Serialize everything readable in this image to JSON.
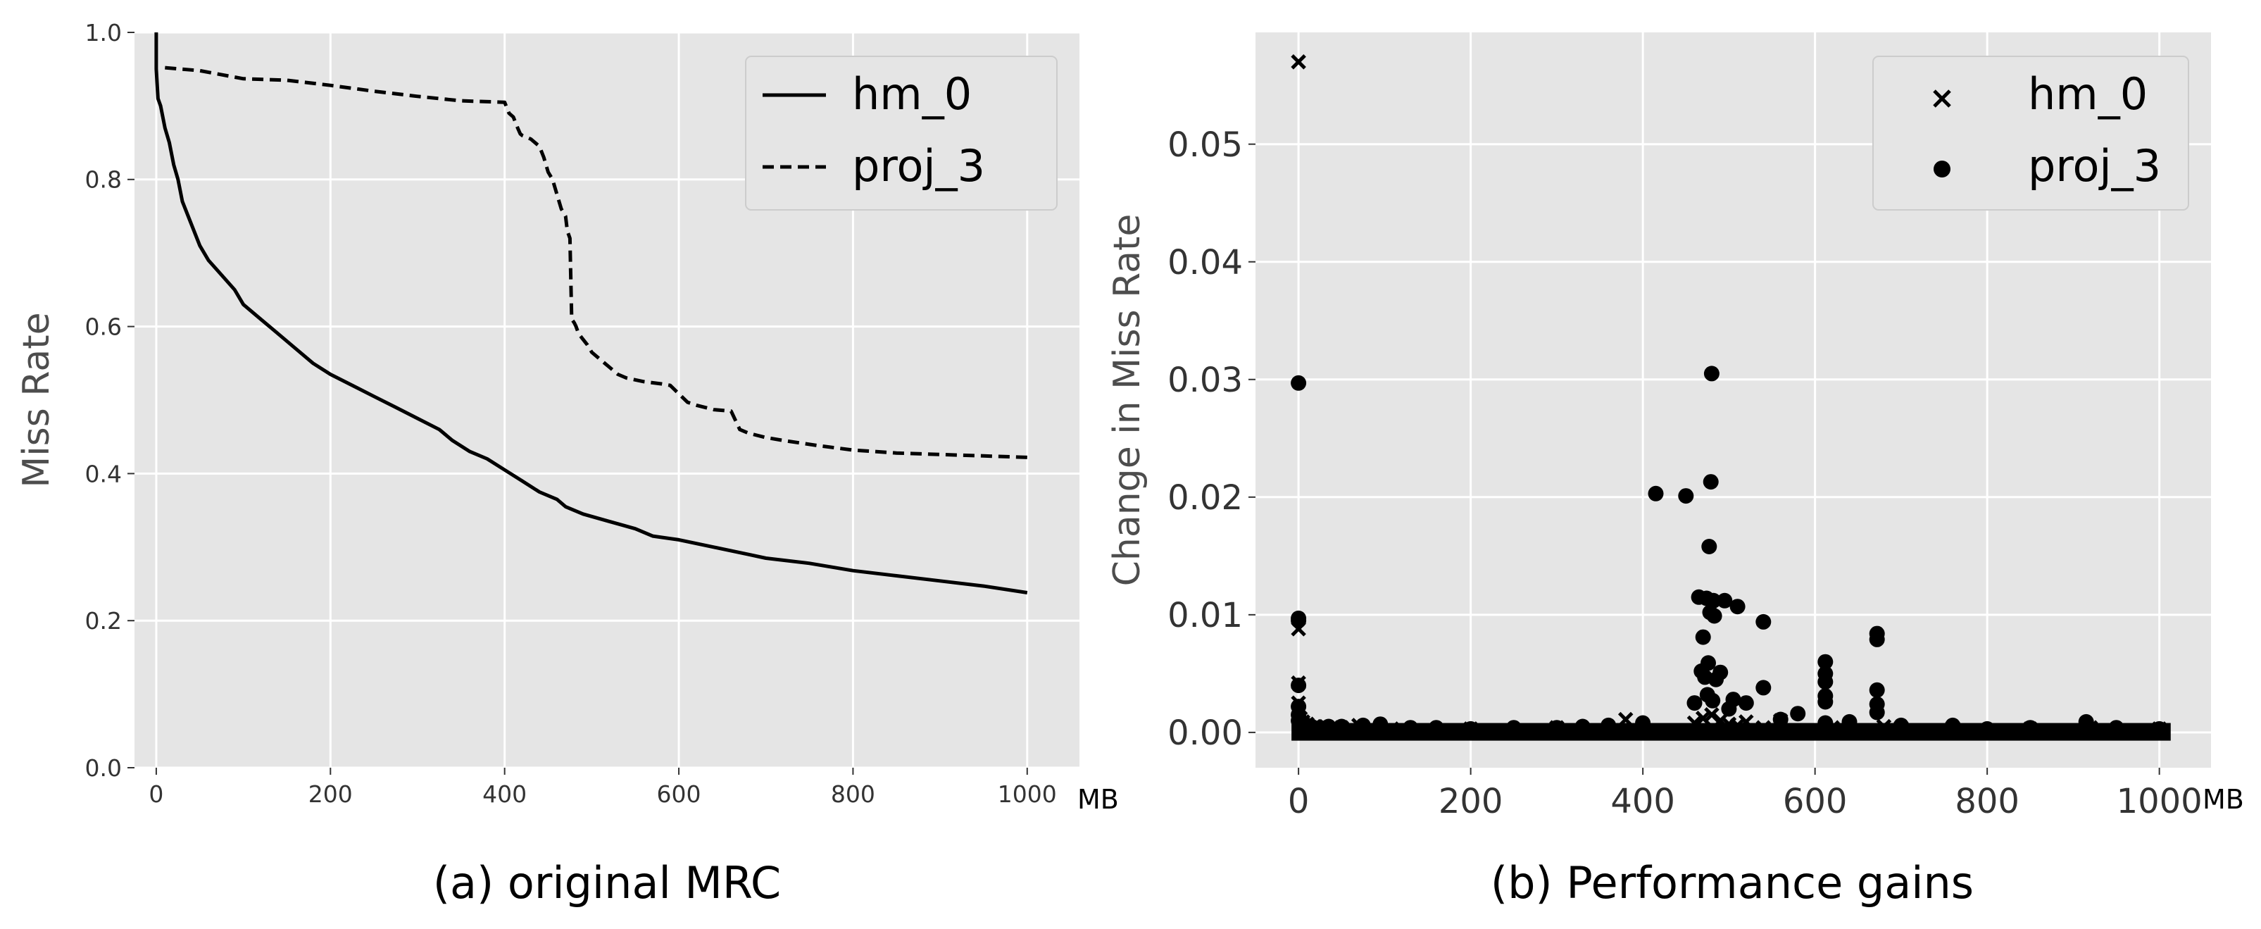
{
  "colors": {
    "panel_bg": "#e5e5e5",
    "grid": "#ffffff",
    "series": "#000000",
    "legend_bg": "#e5e5e5",
    "legend_border": "#cccccc"
  },
  "chart_data": [
    {
      "id": "a",
      "type": "line",
      "caption": "(a) original MRC",
      "xlabel": "",
      "ylabel": "Miss Rate",
      "x_unit": "MB",
      "xlim": [
        -25,
        1060
      ],
      "ylim": [
        0.0,
        1.0
      ],
      "xticks": [
        0,
        200,
        400,
        600,
        800,
        1000
      ],
      "yticks": [
        0.0,
        0.2,
        0.4,
        0.6,
        0.8,
        1.0
      ],
      "xtick_labels": [
        "0",
        "200",
        "400",
        "600",
        "800",
        "1000"
      ],
      "ytick_labels": [
        "0.0",
        "0.2",
        "0.4",
        "0.6",
        "0.8",
        "1.0"
      ],
      "grid": true,
      "legend_position": "top-right",
      "series": [
        {
          "name": "hm_0",
          "style": "solid",
          "x": [
            0,
            0,
            2,
            5,
            10,
            15,
            20,
            25,
            30,
            40,
            50,
            60,
            75,
            90,
            100,
            120,
            140,
            160,
            180,
            200,
            225,
            250,
            275,
            300,
            325,
            340,
            360,
            380,
            400,
            420,
            440,
            460,
            470,
            490,
            520,
            550,
            570,
            600,
            640,
            680,
            700,
            750,
            800,
            850,
            900,
            950,
            1000
          ],
          "y": [
            1.0,
            0.95,
            0.91,
            0.9,
            0.87,
            0.85,
            0.82,
            0.8,
            0.77,
            0.74,
            0.71,
            0.69,
            0.67,
            0.65,
            0.63,
            0.61,
            0.59,
            0.57,
            0.55,
            0.535,
            0.52,
            0.505,
            0.49,
            0.475,
            0.46,
            0.445,
            0.43,
            0.42,
            0.405,
            0.39,
            0.375,
            0.365,
            0.355,
            0.345,
            0.335,
            0.325,
            0.315,
            0.31,
            0.3,
            0.29,
            0.285,
            0.278,
            0.268,
            0.261,
            0.254,
            0.247,
            0.238
          ]
        },
        {
          "name": "proj_3",
          "style": "dashed",
          "x": [
            10,
            50,
            100,
            150,
            200,
            250,
            300,
            350,
            400,
            405,
            410,
            415,
            418,
            420,
            430,
            440,
            445,
            450,
            455,
            460,
            465,
            470,
            472,
            475,
            477,
            480,
            482,
            485,
            495,
            500,
            510,
            520,
            530,
            540,
            560,
            580,
            590,
            610,
            620,
            640,
            660,
            670,
            680,
            700,
            720,
            760,
            800,
            850,
            900,
            950,
            1000
          ],
          "y": [
            0.952,
            0.948,
            0.937,
            0.935,
            0.928,
            0.92,
            0.913,
            0.907,
            0.905,
            0.89,
            0.885,
            0.87,
            0.862,
            0.86,
            0.855,
            0.845,
            0.83,
            0.81,
            0.8,
            0.78,
            0.76,
            0.75,
            0.73,
            0.72,
            0.61,
            0.605,
            0.6,
            0.59,
            0.575,
            0.565,
            0.555,
            0.545,
            0.535,
            0.53,
            0.525,
            0.522,
            0.52,
            0.497,
            0.493,
            0.487,
            0.485,
            0.46,
            0.455,
            0.449,
            0.445,
            0.438,
            0.432,
            0.428,
            0.426,
            0.424,
            0.422
          ]
        }
      ]
    },
    {
      "id": "b",
      "type": "scatter",
      "caption": "(b) Performance gains",
      "xlabel": "",
      "ylabel": "Change in Miss Rate",
      "x_unit": "MB",
      "xlim": [
        -50,
        1060
      ],
      "ylim": [
        -0.003,
        0.0595
      ],
      "xticks": [
        0,
        200,
        400,
        600,
        800,
        1000
      ],
      "yticks": [
        0.0,
        0.01,
        0.02,
        0.03,
        0.04,
        0.05
      ],
      "xtick_labels": [
        "0",
        "200",
        "400",
        "600",
        "800",
        "1000"
      ],
      "ytick_labels": [
        "0.00",
        "0.01",
        "0.02",
        "0.03",
        "0.04",
        "0.05"
      ],
      "grid": true,
      "legend_position": "top-right",
      "baseline_x_range": [
        0,
        1005
      ],
      "series": [
        {
          "name": "hm_0",
          "marker": "x",
          "x": [
            0,
            0,
            0,
            0,
            0,
            2,
            5,
            10,
            20,
            30,
            50,
            70,
            120,
            200,
            300,
            380,
            460,
            470,
            480,
            490,
            500,
            510,
            520,
            540,
            560,
            620,
            680,
            700,
            760,
            850,
            920,
            1000
          ],
          "y": [
            0.057,
            0.0088,
            0.0042,
            0.0025,
            0.0018,
            0.0012,
            0.0009,
            0.0007,
            0.0005,
            0.0005,
            0.0004,
            0.0006,
            0.0003,
            0.0003,
            0.0004,
            0.0011,
            0.0008,
            0.0012,
            0.0015,
            0.001,
            0.0007,
            0.0006,
            0.0009,
            0.0004,
            0.001,
            0.0004,
            0.0005,
            0.0004,
            0.0004,
            0.0003,
            0.0004,
            0.0003
          ]
        },
        {
          "name": "proj_3",
          "marker": "o",
          "x": [
            0,
            0,
            0,
            0,
            0,
            0,
            0,
            5,
            10,
            15,
            25,
            35,
            50,
            75,
            95,
            130,
            160,
            200,
            250,
            300,
            330,
            360,
            400,
            415,
            450,
            460,
            465,
            468,
            470,
            472,
            474,
            475,
            476,
            477,
            478,
            479,
            480,
            481,
            482,
            483,
            485,
            490,
            495,
            500,
            505,
            510,
            520,
            540,
            540,
            560,
            580,
            612,
            612,
            612,
            612,
            612,
            612,
            640,
            672,
            672,
            672,
            672,
            672,
            700,
            760,
            800,
            850,
            915,
            950,
            1000
          ],
          "y": [
            0.0297,
            0.0097,
            0.0095,
            0.004,
            0.0022,
            0.0015,
            0.001,
            0.0008,
            0.0006,
            0.0005,
            0.0004,
            0.0005,
            0.0005,
            0.0006,
            0.0007,
            0.0004,
            0.0004,
            0.0003,
            0.0004,
            0.0004,
            0.0005,
            0.0006,
            0.0008,
            0.0203,
            0.0201,
            0.0025,
            0.0115,
            0.0052,
            0.0081,
            0.0047,
            0.0114,
            0.0032,
            0.0059,
            0.0158,
            0.0102,
            0.0213,
            0.0305,
            0.0027,
            0.0112,
            0.0099,
            0.0045,
            0.0051,
            0.0112,
            0.002,
            0.0028,
            0.0107,
            0.0025,
            0.0038,
            0.0094,
            0.0011,
            0.0016,
            0.006,
            0.005,
            0.0043,
            0.0031,
            0.0026,
            0.0008,
            0.0009,
            0.0084,
            0.0079,
            0.0036,
            0.0024,
            0.0017,
            0.0006,
            0.0006,
            0.0003,
            0.0004,
            0.0009,
            0.0004,
            0.0003
          ]
        }
      ]
    }
  ]
}
